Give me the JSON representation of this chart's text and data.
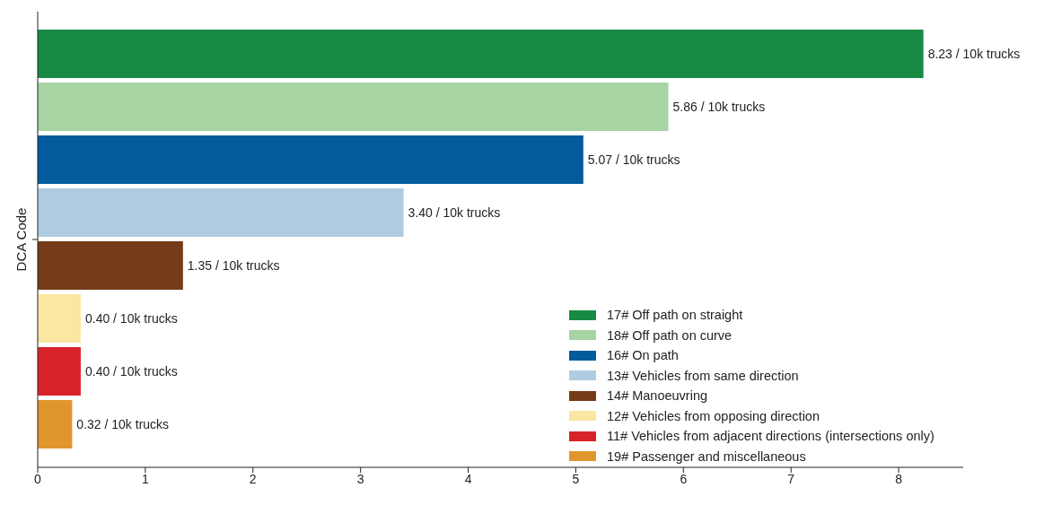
{
  "chart_data": {
    "type": "bar",
    "orientation": "horizontal",
    "ylabel": "DCA Code",
    "categories": [
      null
    ],
    "series": [
      {
        "name": "17# Off path on straight",
        "color": "#178a43",
        "values": [
          8.23
        ],
        "value_labels": [
          "8.23 / 10k trucks"
        ]
      },
      {
        "name": "18# Off path on curve",
        "color": "#a6d4a3",
        "values": [
          5.86
        ],
        "value_labels": [
          "5.86 / 10k trucks"
        ]
      },
      {
        "name": "16# On path",
        "color": "#035a9c",
        "values": [
          5.07
        ],
        "value_labels": [
          "5.07 / 10k trucks"
        ]
      },
      {
        "name": "13# Vehicles from same direction",
        "color": "#b0cce0",
        "values": [
          3.4
        ],
        "value_labels": [
          "3.40 / 10k trucks"
        ]
      },
      {
        "name": "14# Manoeuvring",
        "color": "#743c18",
        "values": [
          1.35
        ],
        "value_labels": [
          "1.35 / 10k trucks"
        ]
      },
      {
        "name": "12# Vehicles from opposing direction",
        "color": "#f9e7a2",
        "values": [
          0.4
        ],
        "value_labels": [
          "0.40 / 10k trucks"
        ]
      },
      {
        "name": "11# Vehicles from adjacent directions (intersections only)",
        "color": "#d8232b",
        "values": [
          0.4
        ],
        "value_labels": [
          "0.40 / 10k trucks"
        ]
      },
      {
        "name": "19# Passenger and miscellaneous",
        "color": "#e0962c",
        "values": [
          0.32
        ],
        "value_labels": [
          "0.32 / 10k trucks"
        ]
      }
    ],
    "xlim": [
      0,
      8.6
    ],
    "xticks": [
      0,
      1,
      2,
      3,
      4,
      5,
      6,
      7,
      8
    ],
    "grid": false,
    "legend": "bottom right"
  }
}
